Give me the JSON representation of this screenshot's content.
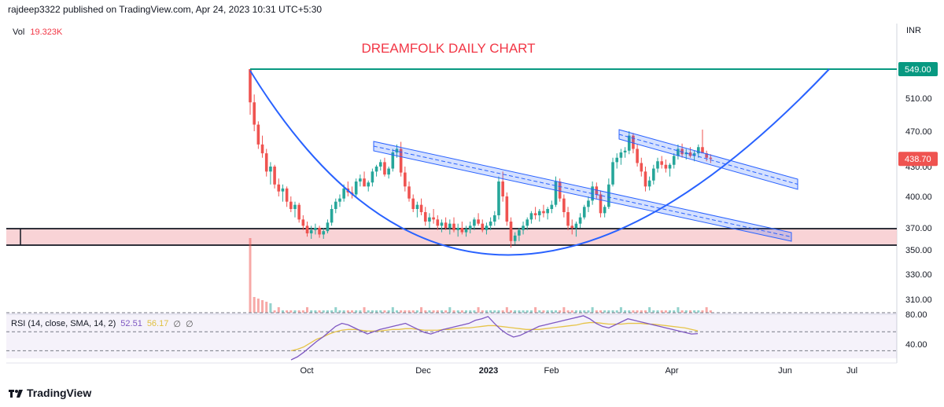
{
  "header": {
    "published": "rajdeep3322 published on TradingView.com, Apr 24, 2023 10:31 UTC+5:30"
  },
  "volume": {
    "label": "Vol",
    "value": "19.323K"
  },
  "chart_title": "DREAMFOLK DAILY CHART",
  "currency": "INR",
  "footer": {
    "brand": "TradingView"
  },
  "rsi": {
    "label": "RSI (14, close, SMA, 14, 2)",
    "value": "52.51",
    "sma": "56.17",
    "null1": "∅",
    "null2": "∅"
  },
  "colors": {
    "up": "#26a69a",
    "down": "#ef5350",
    "curve": "#2962ff",
    "resistance": "#089981",
    "zone": "#f8c8cc",
    "title": "#f23645",
    "rsi": "#7e57c2",
    "rsi_sma": "#e6c449"
  },
  "chart_data": {
    "type": "candlestick",
    "title": "DREAMFOLK DAILY CHART",
    "x_ticks": [
      "Oct",
      "Dec",
      "2023",
      "Feb",
      "Apr",
      "Jun",
      "Jul"
    ],
    "y_ticks": [
      510,
      470,
      430,
      400,
      370,
      350,
      330,
      310
    ],
    "price_labels": [
      {
        "label": "549.00",
        "value": 549
      },
      {
        "label": "438.70",
        "value": 438.7
      }
    ],
    "ylim": [
      296,
      560
    ],
    "rsi_ticks": [
      80,
      40
    ],
    "resistance_level": 549,
    "support_zone": [
      355,
      365
    ],
    "series": [
      {
        "name": "price",
        "values": [
          [
            549,
            549,
            490,
            505
          ],
          [
            505,
            515,
            470,
            478
          ],
          [
            478,
            482,
            450,
            455
          ],
          [
            455,
            465,
            440,
            445
          ],
          [
            445,
            450,
            420,
            425
          ],
          [
            425,
            435,
            412,
            430
          ],
          [
            430,
            432,
            408,
            412
          ],
          [
            412,
            418,
            400,
            405
          ],
          [
            405,
            412,
            395,
            408
          ],
          [
            408,
            410,
            390,
            395
          ],
          [
            395,
            400,
            385,
            388
          ],
          [
            388,
            395,
            380,
            392
          ],
          [
            392,
            394,
            375,
            378
          ],
          [
            378,
            382,
            368,
            372
          ],
          [
            372,
            376,
            362,
            365
          ],
          [
            365,
            372,
            360,
            368
          ],
          [
            368,
            374,
            364,
            370
          ],
          [
            370,
            372,
            361,
            364
          ],
          [
            364,
            370,
            360,
            367
          ],
          [
            367,
            378,
            365,
            375
          ],
          [
            375,
            392,
            372,
            388
          ],
          [
            388,
            398,
            384,
            395
          ],
          [
            395,
            402,
            390,
            398
          ],
          [
            398,
            412,
            395,
            408
          ],
          [
            408,
            415,
            400,
            404
          ],
          [
            404,
            410,
            398,
            402
          ],
          [
            402,
            418,
            400,
            415
          ],
          [
            415,
            422,
            410,
            418
          ],
          [
            418,
            425,
            412,
            410
          ],
          [
            410,
            416,
            405,
            414
          ],
          [
            414,
            428,
            410,
            425
          ],
          [
            425,
            432,
            420,
            430
          ],
          [
            430,
            438,
            426,
            435
          ],
          [
            435,
            440,
            420,
            422
          ],
          [
            422,
            430,
            418,
            428
          ],
          [
            428,
            450,
            425,
            446
          ],
          [
            446,
            455,
            440,
            450
          ],
          [
            450,
            458,
            420,
            424
          ],
          [
            424,
            430,
            405,
            410
          ],
          [
            410,
            415,
            395,
            398
          ],
          [
            398,
            402,
            385,
            388
          ],
          [
            388,
            395,
            380,
            392
          ],
          [
            392,
            398,
            382,
            385
          ],
          [
            385,
            390,
            372,
            376
          ],
          [
            376,
            384,
            370,
            380
          ],
          [
            380,
            388,
            374,
            378
          ],
          [
            378,
            382,
            368,
            372
          ],
          [
            372,
            378,
            366,
            375
          ],
          [
            375,
            380,
            368,
            370
          ],
          [
            370,
            378,
            364,
            374
          ],
          [
            374,
            380,
            366,
            368
          ],
          [
            368,
            374,
            362,
            370
          ],
          [
            370,
            376,
            364,
            366
          ],
          [
            366,
            372,
            362,
            369
          ],
          [
            369,
            376,
            365,
            372
          ],
          [
            372,
            380,
            368,
            378
          ],
          [
            378,
            384,
            372,
            374
          ],
          [
            374,
            378,
            366,
            368
          ],
          [
            368,
            375,
            364,
            372
          ],
          [
            372,
            380,
            368,
            376
          ],
          [
            376,
            386,
            372,
            382
          ],
          [
            382,
            420,
            378,
            415
          ],
          [
            415,
            425,
            395,
            400
          ],
          [
            400,
            404,
            372,
            376
          ],
          [
            376,
            380,
            352,
            358
          ],
          [
            358,
            366,
            355,
            363
          ],
          [
            363,
            370,
            358,
            368
          ],
          [
            368,
            376,
            364,
            372
          ],
          [
            372,
            380,
            368,
            378
          ],
          [
            378,
            386,
            374,
            384
          ],
          [
            384,
            390,
            378,
            382
          ],
          [
            382,
            388,
            376,
            386
          ],
          [
            386,
            392,
            380,
            384
          ],
          [
            384,
            390,
            378,
            388
          ],
          [
            388,
            396,
            384,
            392
          ],
          [
            392,
            420,
            390,
            415
          ],
          [
            415,
            418,
            395,
            398
          ],
          [
            398,
            402,
            380,
            385
          ],
          [
            385,
            390,
            368,
            372
          ],
          [
            372,
            378,
            364,
            370
          ],
          [
            370,
            376,
            362,
            374
          ],
          [
            374,
            384,
            370,
            380
          ],
          [
            380,
            392,
            378,
            390
          ],
          [
            390,
            400,
            385,
            396
          ],
          [
            396,
            415,
            392,
            410
          ],
          [
            410,
            414,
            398,
            402
          ],
          [
            402,
            406,
            380,
            384
          ],
          [
            384,
            392,
            380,
            390
          ],
          [
            390,
            418,
            388,
            412
          ],
          [
            412,
            440,
            410,
            435
          ],
          [
            435,
            445,
            428,
            440
          ],
          [
            440,
            450,
            432,
            446
          ],
          [
            446,
            452,
            440,
            448
          ],
          [
            448,
            470,
            444,
            465
          ],
          [
            465,
            468,
            445,
            450
          ],
          [
            450,
            455,
            430,
            434
          ],
          [
            434,
            440,
            420,
            425
          ],
          [
            425,
            430,
            405,
            410
          ],
          [
            410,
            420,
            406,
            416
          ],
          [
            416,
            432,
            412,
            428
          ],
          [
            428,
            440,
            424,
            436
          ],
          [
            436,
            442,
            428,
            432
          ],
          [
            432,
            438,
            424,
            428
          ],
          [
            428,
            434,
            420,
            432
          ],
          [
            432,
            445,
            428,
            442
          ],
          [
            442,
            455,
            438,
            450
          ],
          [
            450,
            456,
            440,
            444
          ],
          [
            444,
            450,
            438,
            446
          ],
          [
            446,
            452,
            440,
            442
          ],
          [
            442,
            448,
            436,
            445
          ],
          [
            445,
            455,
            440,
            452
          ],
          [
            452,
            472,
            448,
            445
          ],
          [
            445,
            448,
            436,
            440
          ],
          [
            440,
            444,
            434,
            438.7
          ]
        ]
      }
    ],
    "rsi_values": [
      18,
      22,
      28,
      35,
      42,
      48,
      55,
      62,
      66,
      64,
      60,
      56,
      52,
      55,
      58,
      60,
      62,
      64,
      66,
      62,
      58,
      54,
      52,
      55,
      58,
      60,
      62,
      64,
      66,
      70,
      72,
      75,
      66,
      58,
      52,
      48,
      50,
      54,
      58,
      62,
      64,
      66,
      68,
      70,
      72,
      74,
      76,
      72,
      66,
      62,
      60,
      64,
      68,
      72,
      70,
      68,
      66,
      64,
      62,
      60,
      58,
      56,
      54,
      52,
      52.51
    ],
    "rsi_sma_values": [
      30,
      32,
      35,
      40,
      45,
      48,
      52,
      55,
      57,
      58,
      58,
      57,
      56,
      56,
      56,
      57,
      58,
      58,
      59,
      59,
      58,
      57,
      57,
      57,
      58,
      58,
      59,
      60,
      60,
      61,
      62,
      63,
      63,
      62,
      61,
      60,
      59,
      58,
      58,
      58,
      59,
      60,
      61,
      62,
      63,
      64,
      66,
      67,
      67,
      66,
      65,
      65,
      65,
      66,
      66,
      66,
      65,
      65,
      64,
      63,
      62,
      61,
      60,
      58,
      56.17
    ]
  }
}
